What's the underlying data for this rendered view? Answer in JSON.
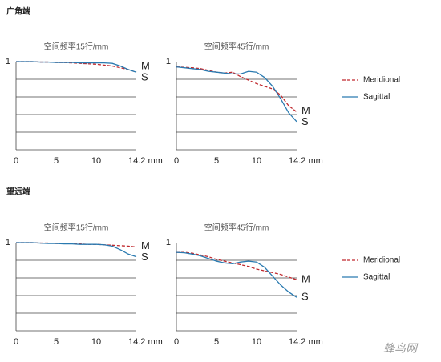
{
  "sections": [
    {
      "title": "广角端"
    },
    {
      "title": "望远端"
    }
  ],
  "watermark": "蜂鸟网",
  "chart_data": [
    {
      "type": "line",
      "title": "空间频率15行/mm",
      "xlim": [
        0,
        15
      ],
      "ylim": [
        0,
        1
      ],
      "xticks": [
        0,
        5,
        10,
        {
          "value": 14.2,
          "label": "14.2 mm"
        }
      ],
      "yticks": [
        1
      ],
      "ygrid": [
        0,
        0.2,
        0.4,
        0.6,
        0.8
      ],
      "x": [
        0,
        1,
        2,
        3,
        4,
        5,
        6,
        7,
        8,
        9,
        10,
        11,
        12,
        13,
        14,
        15
      ],
      "series": [
        {
          "name": "Meridional",
          "label": "M",
          "color": "#c0282d",
          "dashed": true,
          "values": [
            1,
            1,
            1,
            0.995,
            0.995,
            0.99,
            0.99,
            0.985,
            0.98,
            0.975,
            0.97,
            0.96,
            0.95,
            0.93,
            0.91,
            0.88
          ]
        },
        {
          "name": "Sagittal",
          "label": "S",
          "color": "#2a7ab0",
          "dashed": false,
          "values": [
            1,
            1,
            1,
            0.995,
            0.995,
            0.99,
            0.99,
            0.99,
            0.985,
            0.985,
            0.985,
            0.985,
            0.98,
            0.95,
            0.91,
            0.88
          ]
        }
      ]
    },
    {
      "type": "line",
      "title": "空间频率45行/mm",
      "xlim": [
        0,
        15
      ],
      "ylim": [
        0,
        1
      ],
      "xticks": [
        0,
        5,
        10,
        {
          "value": 14.2,
          "label": "14.2 mm"
        }
      ],
      "yticks": [
        1
      ],
      "ygrid": [
        0,
        0.2,
        0.4,
        0.6,
        0.8
      ],
      "x": [
        0,
        1,
        2,
        3,
        4,
        5,
        6,
        7,
        8,
        9,
        10,
        11,
        12,
        13,
        14,
        15
      ],
      "series": [
        {
          "name": "Meridional",
          "label": "M",
          "color": "#c0282d",
          "dashed": true,
          "values": [
            0.94,
            0.935,
            0.93,
            0.92,
            0.9,
            0.88,
            0.87,
            0.88,
            0.83,
            0.79,
            0.75,
            0.72,
            0.69,
            0.62,
            0.5,
            0.43
          ]
        },
        {
          "name": "Sagittal",
          "label": "S",
          "color": "#2a7ab0",
          "dashed": false,
          "values": [
            0.94,
            0.93,
            0.92,
            0.91,
            0.89,
            0.88,
            0.87,
            0.86,
            0.86,
            0.89,
            0.88,
            0.82,
            0.72,
            0.58,
            0.42,
            0.32
          ]
        }
      ]
    },
    {
      "type": "line",
      "title": "空间频率15行/mm",
      "xlim": [
        0,
        15
      ],
      "ylim": [
        0,
        1
      ],
      "xticks": [
        0,
        5,
        10,
        {
          "value": 14.2,
          "label": "14.2 mm"
        }
      ],
      "yticks": [
        1
      ],
      "ygrid": [
        0,
        0.2,
        0.4,
        0.6,
        0.8
      ],
      "x": [
        0,
        1,
        2,
        3,
        4,
        5,
        6,
        7,
        8,
        9,
        10,
        11,
        12,
        13,
        14,
        15
      ],
      "series": [
        {
          "name": "Meridional",
          "label": "M",
          "color": "#c0282d",
          "dashed": true,
          "values": [
            1,
            1,
            1,
            0.995,
            0.995,
            0.99,
            0.99,
            0.99,
            0.985,
            0.98,
            0.98,
            0.975,
            0.97,
            0.965,
            0.96,
            0.95
          ]
        },
        {
          "name": "Sagittal",
          "label": "S",
          "color": "#2a7ab0",
          "dashed": false,
          "values": [
            1,
            1,
            1,
            0.995,
            0.99,
            0.99,
            0.985,
            0.985,
            0.98,
            0.98,
            0.98,
            0.975,
            0.96,
            0.92,
            0.87,
            0.84
          ]
        }
      ]
    },
    {
      "type": "line",
      "title": "空间频率45行/mm",
      "xlim": [
        0,
        15
      ],
      "ylim": [
        0,
        1
      ],
      "xticks": [
        0,
        5,
        10,
        {
          "value": 14.2,
          "label": "14.2 mm"
        }
      ],
      "yticks": [
        1
      ],
      "ygrid": [
        0,
        0.2,
        0.4,
        0.6,
        0.8
      ],
      "x": [
        0,
        1,
        2,
        3,
        4,
        5,
        6,
        7,
        8,
        9,
        10,
        11,
        12,
        13,
        14,
        15
      ],
      "series": [
        {
          "name": "Meridional",
          "label": "M",
          "color": "#c0282d",
          "dashed": true,
          "values": [
            0.89,
            0.89,
            0.88,
            0.86,
            0.84,
            0.81,
            0.79,
            0.77,
            0.75,
            0.73,
            0.7,
            0.68,
            0.66,
            0.64,
            0.61,
            0.58
          ]
        },
        {
          "name": "Sagittal",
          "label": "S",
          "color": "#2a7ab0",
          "dashed": false,
          "values": [
            0.89,
            0.885,
            0.87,
            0.85,
            0.82,
            0.79,
            0.77,
            0.76,
            0.78,
            0.79,
            0.78,
            0.72,
            0.62,
            0.52,
            0.44,
            0.38
          ]
        }
      ]
    }
  ]
}
